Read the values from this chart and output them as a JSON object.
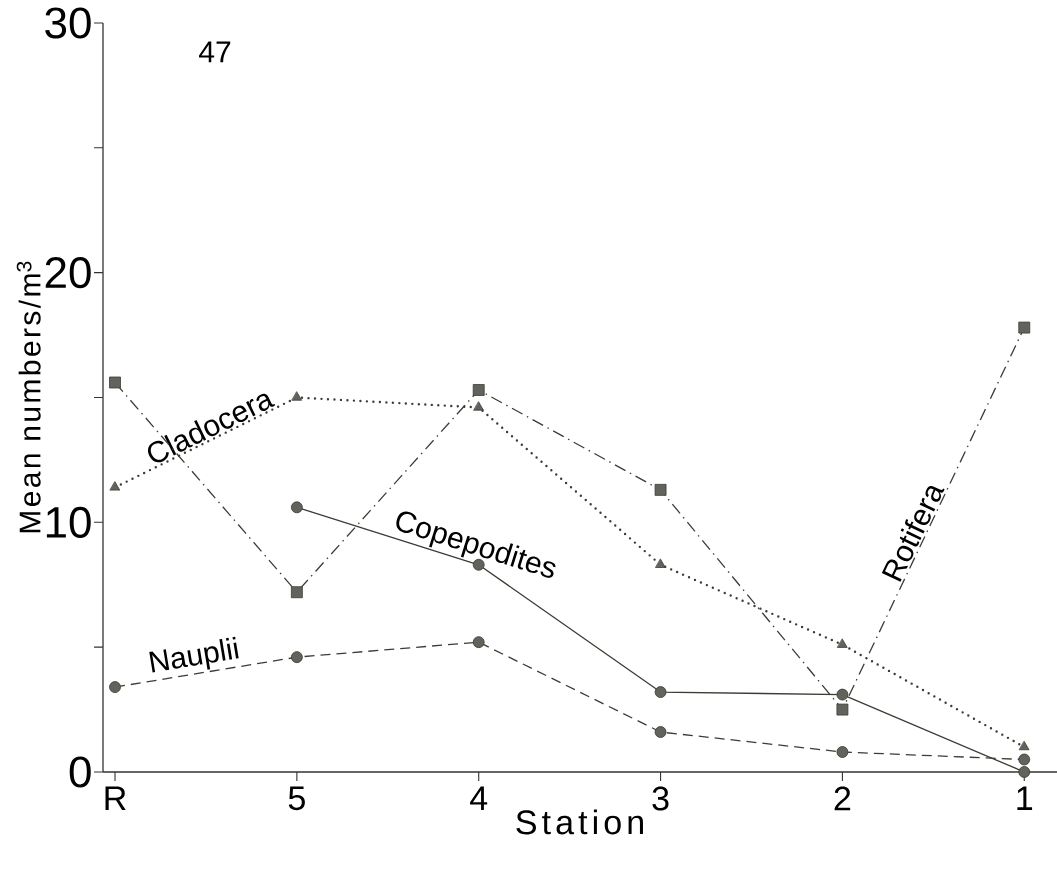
{
  "chart_data": {
    "type": "line",
    "xlabel": "Station",
    "ylabel": "Mean numbers/m$^{3}$",
    "categories": [
      "R",
      "5",
      "4",
      "3",
      "2",
      "1"
    ],
    "ylim": [
      0,
      30
    ],
    "yticks": [
      0,
      {
        "value": 5,
        "label": null
      },
      10,
      {
        "value": 15,
        "label": null
      },
      20,
      {
        "value": 25,
        "label": null
      },
      30
    ],
    "grid": false,
    "annotations": [
      "47"
    ],
    "series": [
      {
        "name": "Copepodites",
        "color": "#3c3c34",
        "marker": "circle",
        "line_style": "solid",
        "values": [
          null,
          10.6,
          8.3,
          3.2,
          3.1,
          0
        ]
      },
      {
        "name": "Cladocera",
        "color": "#3c3c34",
        "marker": "triangle",
        "line_style": "dotted",
        "values": [
          11.4,
          15.0,
          14.6,
          8.3,
          5.1,
          1.0
        ]
      },
      {
        "name": "Nauplii",
        "color": "#3c3c34",
        "marker": "circle",
        "line_style": "dashed",
        "values": [
          3.4,
          4.6,
          5.2,
          1.6,
          0.8,
          0.5
        ]
      },
      {
        "name": "Rotifera",
        "color": "#3c3c34",
        "marker": "square",
        "line_style": "dashdot",
        "values": [
          15.6,
          7.2,
          15.3,
          11.3,
          2.5,
          17.8
        ]
      }
    ]
  }
}
